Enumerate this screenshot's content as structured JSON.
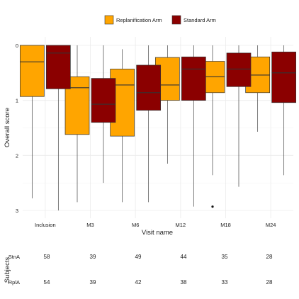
{
  "chart_data": {
    "type": "boxplot",
    "title": "",
    "xlabel": "Visit name",
    "ylabel": "Overall score",
    "y_reversed": true,
    "ylim": [
      0,
      3
    ],
    "yticks": [
      0,
      1,
      2,
      3
    ],
    "grid": true,
    "legend_position": "top",
    "categories": [
      "Inclusion",
      "M3",
      "M6",
      "M12",
      "M18",
      "M24"
    ],
    "series": [
      {
        "name": "Replanification Arm",
        "color": "#FFA500",
        "boxes": [
          {
            "min": 0.0,
            "q1": 0.0,
            "median": 0.3,
            "q3": 0.93,
            "max": 2.78
          },
          {
            "min": 0.0,
            "q1": 0.57,
            "median": 0.77,
            "q3": 1.62,
            "max": 2.85
          },
          {
            "min": 0.07,
            "q1": 0.43,
            "median": 0.72,
            "q3": 1.65,
            "max": 2.85
          },
          {
            "min": 0.0,
            "q1": 0.22,
            "median": 0.72,
            "q3": 1.0,
            "max": 2.15
          },
          {
            "min": 0.0,
            "q1": 0.29,
            "median": 0.57,
            "q3": 0.86,
            "max": 2.36
          },
          {
            "min": 0.0,
            "q1": 0.21,
            "median": 0.54,
            "q3": 0.86,
            "max": 1.57
          }
        ],
        "outliers": [
          {
            "category": "M18",
            "value": 2.93
          }
        ]
      },
      {
        "name": "Standard Arm",
        "color": "#8B0000",
        "boxes": [
          {
            "min": 0.0,
            "q1": 0.0,
            "median": 0.14,
            "q3": 0.79,
            "max": 3.0
          },
          {
            "min": 0.0,
            "q1": 0.6,
            "median": 1.07,
            "q3": 1.4,
            "max": 2.5
          },
          {
            "min": 0.0,
            "q1": 0.36,
            "median": 0.86,
            "q3": 1.18,
            "max": 2.85
          },
          {
            "min": 0.0,
            "q1": 0.21,
            "median": 0.43,
            "q3": 1.0,
            "max": 2.93
          },
          {
            "min": 0.0,
            "q1": 0.14,
            "median": 0.43,
            "q3": 0.75,
            "max": 2.57
          },
          {
            "min": 0.0,
            "q1": 0.12,
            "median": 0.5,
            "q3": 1.04,
            "max": 2.36
          }
        ],
        "outliers": []
      }
    ],
    "subjects_table": {
      "title": "Subjects",
      "rows": [
        {
          "label": "StnA",
          "values": [
            58,
            39,
            49,
            44,
            35,
            28
          ]
        },
        {
          "label": "RplA",
          "values": [
            54,
            39,
            42,
            38,
            33,
            28
          ]
        }
      ]
    }
  }
}
